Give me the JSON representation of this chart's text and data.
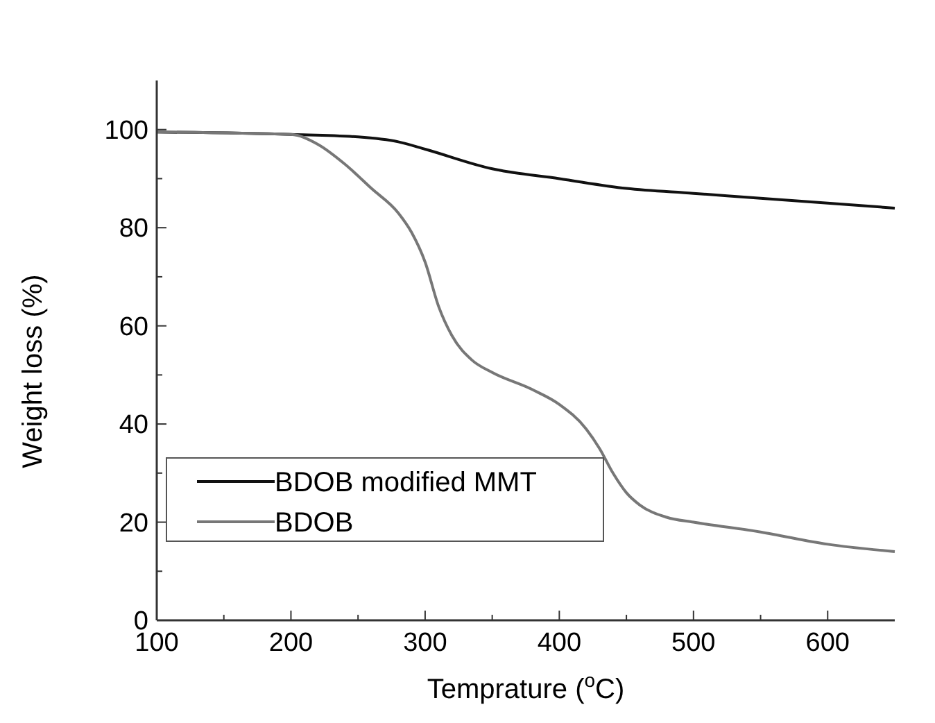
{
  "chart_data": {
    "type": "line",
    "xlabel": "Temprature ($^{o}$C)",
    "ylabel": "Weight loss (%)",
    "xlim": [
      100,
      650
    ],
    "ylim": [
      0,
      110
    ],
    "xticks": [
      100,
      {
        "value": 150,
        "label": null
      },
      200,
      {
        "value": 250,
        "label": null
      },
      300,
      {
        "value": 350,
        "label": null
      },
      400,
      {
        "value": 450,
        "label": null
      },
      500,
      {
        "value": 550,
        "label": null
      },
      600
    ],
    "yticks": [
      0,
      {
        "value": 10,
        "label": null
      },
      20,
      {
        "value": 30,
        "label": null
      },
      40,
      {
        "value": 50,
        "label": null
      },
      60,
      {
        "value": 70,
        "label": null
      },
      80,
      {
        "value": 90,
        "label": null
      },
      100
    ],
    "legend": "bottom left",
    "grid": false,
    "line_style": "solid",
    "marker": "none",
    "series": [
      {
        "name": "BDOB modified MMT",
        "color": "#111111",
        "x": [
          100,
          200,
          250,
          280,
          300,
          350,
          400,
          450,
          500,
          550,
          600,
          650
        ],
        "values": [
          99.5,
          99,
          98.5,
          97.5,
          96,
          92,
          90,
          88,
          87,
          86,
          85,
          84
        ]
      },
      {
        "name": "BDOB",
        "color": "#777777",
        "x": [
          100,
          200,
          220,
          240,
          260,
          280,
          290,
          300,
          310,
          320,
          335,
          350,
          380,
          400,
          420,
          430,
          440,
          450,
          460,
          480,
          500,
          550,
          600,
          650
        ],
        "values": [
          99.5,
          99,
          97,
          93,
          88,
          83,
          79,
          73,
          64,
          58,
          53,
          50.5,
          47,
          44,
          39,
          35,
          30,
          26,
          23.5,
          21,
          20,
          18,
          15.5,
          14
        ]
      }
    ]
  }
}
